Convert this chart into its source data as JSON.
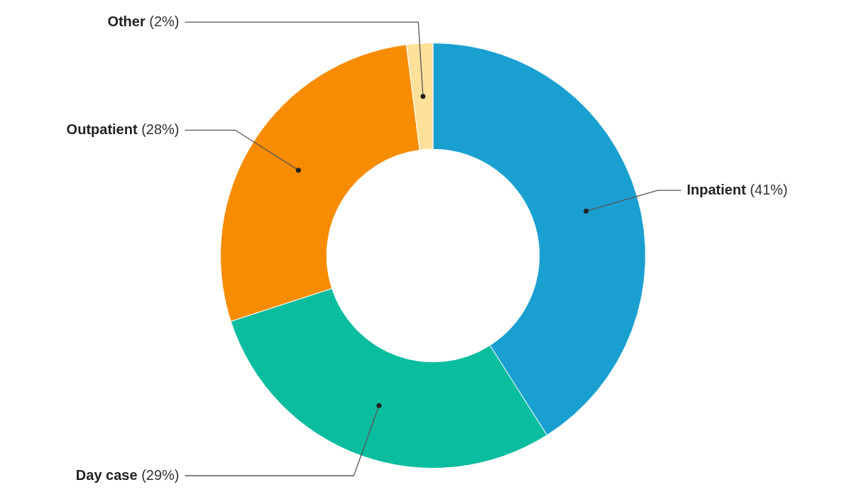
{
  "chart_data": {
    "type": "donut",
    "categories": [
      "Inpatient",
      "Day case",
      "Outpatient",
      "Other"
    ],
    "values": [
      41,
      29,
      28,
      2
    ],
    "value_labels": [
      "(41%)",
      "(29%)",
      "(28%)",
      "(2%)"
    ],
    "colors": [
      "#1aa0d0",
      "#0bbd9f",
      "#f88c00",
      "#ffe19a"
    ]
  }
}
